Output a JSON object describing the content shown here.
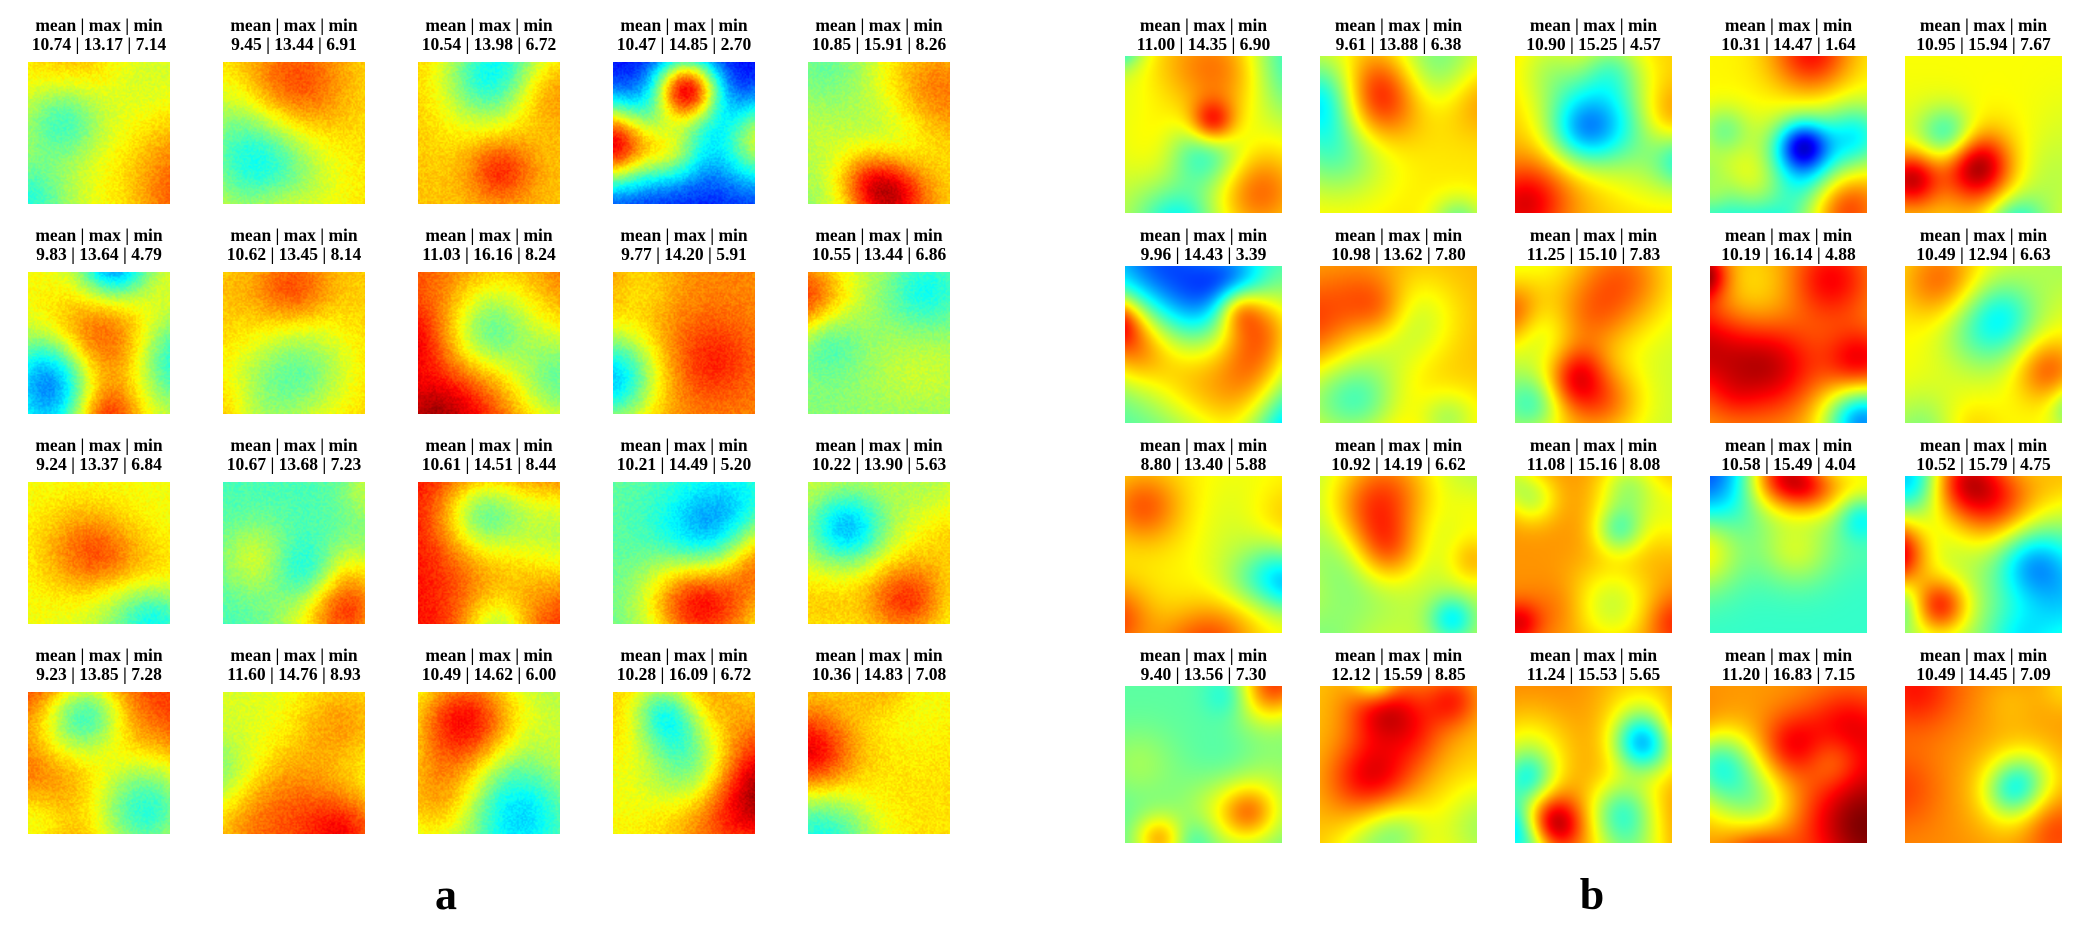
{
  "panels": [
    {
      "label": "a",
      "style": "noisy",
      "rows": 4,
      "cols": 5,
      "cells": [
        {
          "title": "mean | max | min",
          "stats": "10.74 | 13.17 | 7.14",
          "mean": 10.74,
          "max": 13.17,
          "min": 7.14
        },
        {
          "title": "mean | max | min",
          "stats": "9.45 | 13.44 | 6.91",
          "mean": 9.45,
          "max": 13.44,
          "min": 6.91
        },
        {
          "title": "mean | max | min",
          "stats": "10.54 | 13.98 | 6.72",
          "mean": 10.54,
          "max": 13.98,
          "min": 6.72
        },
        {
          "title": "mean | max | min",
          "stats": "10.47 | 14.85 | 2.70",
          "mean": 10.47,
          "max": 14.85,
          "min": 2.7
        },
        {
          "title": "mean | max | min",
          "stats": "10.85 | 15.91 | 8.26",
          "mean": 10.85,
          "max": 15.91,
          "min": 8.26
        },
        {
          "title": "mean | max | min",
          "stats": "9.83 | 13.64 | 4.79",
          "mean": 9.83,
          "max": 13.64,
          "min": 4.79
        },
        {
          "title": "mean | max | min",
          "stats": "10.62 | 13.45 | 8.14",
          "mean": 10.62,
          "max": 13.45,
          "min": 8.14
        },
        {
          "title": "mean | max | min",
          "stats": "11.03 | 16.16 | 8.24",
          "mean": 11.03,
          "max": 16.16,
          "min": 8.24
        },
        {
          "title": "mean | max | min",
          "stats": "9.77 | 14.20 | 5.91",
          "mean": 9.77,
          "max": 14.2,
          "min": 5.91
        },
        {
          "title": "mean | max | min",
          "stats": "10.55 | 13.44 | 6.86",
          "mean": 10.55,
          "max": 13.44,
          "min": 6.86
        },
        {
          "title": "mean | max | min",
          "stats": "9.24 | 13.37 | 6.84",
          "mean": 9.24,
          "max": 13.37,
          "min": 6.84
        },
        {
          "title": "mean | max | min",
          "stats": "10.67 | 13.68 | 7.23",
          "mean": 10.67,
          "max": 13.68,
          "min": 7.23
        },
        {
          "title": "mean | max | min",
          "stats": "10.61 | 14.51 | 8.44",
          "mean": 10.61,
          "max": 14.51,
          "min": 8.44
        },
        {
          "title": "mean | max | min",
          "stats": "10.21 | 14.49 | 5.20",
          "mean": 10.21,
          "max": 14.49,
          "min": 5.2
        },
        {
          "title": "mean | max | min",
          "stats": "10.22 | 13.90 | 5.63",
          "mean": 10.22,
          "max": 13.9,
          "min": 5.63
        },
        {
          "title": "mean | max | min",
          "stats": "9.23 | 13.85 | 7.28",
          "mean": 9.23,
          "max": 13.85,
          "min": 7.28
        },
        {
          "title": "mean | max | min",
          "stats": "11.60 | 14.76 | 8.93",
          "mean": 11.6,
          "max": 14.76,
          "min": 8.93
        },
        {
          "title": "mean | max | min",
          "stats": "10.49 | 14.62 | 6.00",
          "mean": 10.49,
          "max": 14.62,
          "min": 6.0
        },
        {
          "title": "mean | max | min",
          "stats": "10.28 | 16.09 | 6.72",
          "mean": 10.28,
          "max": 16.09,
          "min": 6.72
        },
        {
          "title": "mean | max | min",
          "stats": "10.36 | 14.83 | 7.08",
          "mean": 10.36,
          "max": 14.83,
          "min": 7.08
        }
      ]
    },
    {
      "label": "b",
      "style": "smooth",
      "rows": 4,
      "cols": 5,
      "cells": [
        {
          "title": "mean | max | min",
          "stats": "11.00 | 14.35 | 6.90",
          "mean": 11.0,
          "max": 14.35,
          "min": 6.9
        },
        {
          "title": "mean | max | min",
          "stats": "9.61 | 13.88 | 6.38",
          "mean": 9.61,
          "max": 13.88,
          "min": 6.38
        },
        {
          "title": "mean | max | min",
          "stats": "10.90 | 15.25 | 4.57",
          "mean": 10.9,
          "max": 15.25,
          "min": 4.57
        },
        {
          "title": "mean | max | min",
          "stats": "10.31 | 14.47 | 1.64",
          "mean": 10.31,
          "max": 14.47,
          "min": 1.64
        },
        {
          "title": "mean | max | min",
          "stats": "10.95 | 15.94 | 7.67",
          "mean": 10.95,
          "max": 15.94,
          "min": 7.67
        },
        {
          "title": "mean | max | min",
          "stats": "9.96 | 14.43 | 3.39",
          "mean": 9.96,
          "max": 14.43,
          "min": 3.39
        },
        {
          "title": "mean | max | min",
          "stats": "10.98 | 13.62 | 7.80",
          "mean": 10.98,
          "max": 13.62,
          "min": 7.8
        },
        {
          "title": "mean | max | min",
          "stats": "11.25 | 15.10 | 7.83",
          "mean": 11.25,
          "max": 15.1,
          "min": 7.83
        },
        {
          "title": "mean | max | min",
          "stats": "10.19 | 16.14 | 4.88",
          "mean": 10.19,
          "max": 16.14,
          "min": 4.88
        },
        {
          "title": "mean | max | min",
          "stats": "10.49 | 12.94 | 6.63",
          "mean": 10.49,
          "max": 12.94,
          "min": 6.63
        },
        {
          "title": "mean | max | min",
          "stats": "8.80 | 13.40 | 5.88",
          "mean": 8.8,
          "max": 13.4,
          "min": 5.88
        },
        {
          "title": "mean | max | min",
          "stats": "10.92 | 14.19 | 6.62",
          "mean": 10.92,
          "max": 14.19,
          "min": 6.62
        },
        {
          "title": "mean | max | min",
          "stats": "11.08 | 15.16 | 8.08",
          "mean": 11.08,
          "max": 15.16,
          "min": 8.08
        },
        {
          "title": "mean | max | min",
          "stats": "10.58 | 15.49 | 4.04",
          "mean": 10.58,
          "max": 15.49,
          "min": 4.04
        },
        {
          "title": "mean | max | min",
          "stats": "10.52 | 15.79 | 4.75",
          "mean": 10.52,
          "max": 15.79,
          "min": 4.75
        },
        {
          "title": "mean | max | min",
          "stats": "9.40 | 13.56 | 7.30",
          "mean": 9.4,
          "max": 13.56,
          "min": 7.3
        },
        {
          "title": "mean | max | min",
          "stats": "12.12 | 15.59 | 8.85",
          "mean": 12.12,
          "max": 15.59,
          "min": 8.85
        },
        {
          "title": "mean | max | min",
          "stats": "11.24 | 15.53 | 5.65",
          "mean": 11.24,
          "max": 15.53,
          "min": 5.65
        },
        {
          "title": "mean | max | min",
          "stats": "11.20 | 16.83 | 7.15",
          "mean": 11.2,
          "max": 16.83,
          "min": 7.15
        },
        {
          "title": "mean | max | min",
          "stats": "10.49 | 14.45 | 7.09",
          "mean": 10.49,
          "max": 14.45,
          "min": 7.09
        }
      ]
    }
  ],
  "chart_data": [
    {
      "type": "heatmap",
      "panel": "a",
      "colormap": "jet",
      "grid": "4x5",
      "cells": [
        {
          "mean": 10.74,
          "max": 13.17,
          "min": 7.14
        },
        {
          "mean": 9.45,
          "max": 13.44,
          "min": 6.91
        },
        {
          "mean": 10.54,
          "max": 13.98,
          "min": 6.72
        },
        {
          "mean": 10.47,
          "max": 14.85,
          "min": 2.7
        },
        {
          "mean": 10.85,
          "max": 15.91,
          "min": 8.26
        },
        {
          "mean": 9.83,
          "max": 13.64,
          "min": 4.79
        },
        {
          "mean": 10.62,
          "max": 13.45,
          "min": 8.14
        },
        {
          "mean": 11.03,
          "max": 16.16,
          "min": 8.24
        },
        {
          "mean": 9.77,
          "max": 14.2,
          "min": 5.91
        },
        {
          "mean": 10.55,
          "max": 13.44,
          "min": 6.86
        },
        {
          "mean": 9.24,
          "max": 13.37,
          "min": 6.84
        },
        {
          "mean": 10.67,
          "max": 13.68,
          "min": 7.23
        },
        {
          "mean": 10.61,
          "max": 14.51,
          "min": 8.44
        },
        {
          "mean": 10.21,
          "max": 14.49,
          "min": 5.2
        },
        {
          "mean": 10.22,
          "max": 13.9,
          "min": 5.63
        },
        {
          "mean": 9.23,
          "max": 13.85,
          "min": 7.28
        },
        {
          "mean": 11.6,
          "max": 14.76,
          "min": 8.93
        },
        {
          "mean": 10.49,
          "max": 14.62,
          "min": 6.0
        },
        {
          "mean": 10.28,
          "max": 16.09,
          "min": 6.72
        },
        {
          "mean": 10.36,
          "max": 14.83,
          "min": 7.08
        }
      ]
    },
    {
      "type": "heatmap",
      "panel": "b",
      "colormap": "jet",
      "grid": "4x5",
      "cells": [
        {
          "mean": 11.0,
          "max": 14.35,
          "min": 6.9
        },
        {
          "mean": 9.61,
          "max": 13.88,
          "min": 6.38
        },
        {
          "mean": 10.9,
          "max": 15.25,
          "min": 4.57
        },
        {
          "mean": 10.31,
          "max": 14.47,
          "min": 1.64
        },
        {
          "mean": 10.95,
          "max": 15.94,
          "min": 7.67
        },
        {
          "mean": 9.96,
          "max": 14.43,
          "min": 3.39
        },
        {
          "mean": 10.98,
          "max": 13.62,
          "min": 7.8
        },
        {
          "mean": 11.25,
          "max": 15.1,
          "min": 7.83
        },
        {
          "mean": 10.19,
          "max": 16.14,
          "min": 4.88
        },
        {
          "mean": 10.49,
          "max": 12.94,
          "min": 6.63
        },
        {
          "mean": 8.8,
          "max": 13.4,
          "min": 5.88
        },
        {
          "mean": 10.92,
          "max": 14.19,
          "min": 6.62
        },
        {
          "mean": 11.08,
          "max": 15.16,
          "min": 8.08
        },
        {
          "mean": 10.58,
          "max": 15.49,
          "min": 4.04
        },
        {
          "mean": 10.52,
          "max": 15.79,
          "min": 4.75
        },
        {
          "mean": 9.4,
          "max": 13.56,
          "min": 7.3
        },
        {
          "mean": 12.12,
          "max": 15.59,
          "min": 8.85
        },
        {
          "mean": 11.24,
          "max": 15.53,
          "min": 5.65
        },
        {
          "mean": 11.2,
          "max": 16.83,
          "min": 7.15
        },
        {
          "mean": 10.49,
          "max": 14.45,
          "min": 7.09
        }
      ]
    }
  ]
}
